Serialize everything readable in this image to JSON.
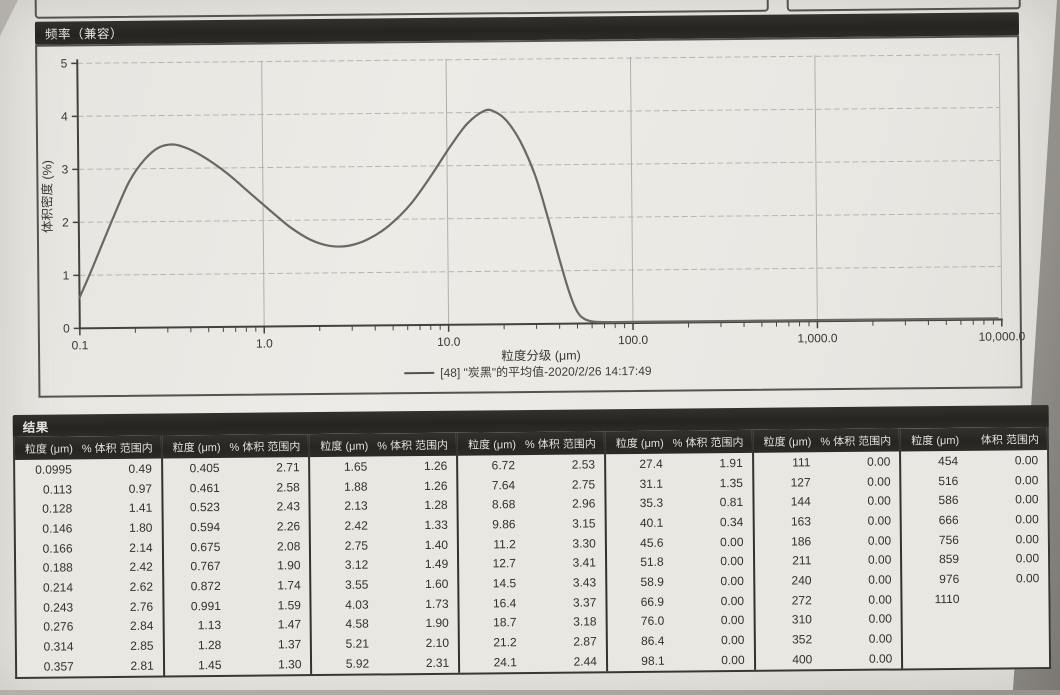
{
  "page": {
    "paper_color": "#e9e7e2",
    "background_color": "#a6a29c",
    "bar_color": "#2b2927",
    "ink_color": "#34322e"
  },
  "chart_panel": {
    "title": "频率（兼容）"
  },
  "chart_data": {
    "type": "line",
    "title": "频率（兼容）",
    "xlabel": "粒度分级 (μm)",
    "ylabel": "体积密度 (%)",
    "x_scale": "log",
    "xlim": [
      0.1,
      10000
    ],
    "ylim": [
      0,
      5
    ],
    "x_tick_labels": [
      "0.1",
      "1.0",
      "10.0",
      "100.0",
      "1,000.0",
      "10,000.0"
    ],
    "y_ticks": [
      0,
      1,
      2,
      3,
      4,
      5
    ],
    "grid": "on",
    "legend_position": "bottom-center",
    "series": [
      {
        "name": "[48] \"炭黑\"的平均值-2020/2/26 14:17:49",
        "points": [
          [
            0.1,
            0.58
          ],
          [
            0.115,
            1.05
          ],
          [
            0.135,
            1.62
          ],
          [
            0.16,
            2.22
          ],
          [
            0.19,
            2.78
          ],
          [
            0.23,
            3.18
          ],
          [
            0.275,
            3.4
          ],
          [
            0.33,
            3.45
          ],
          [
            0.4,
            3.36
          ],
          [
            0.5,
            3.17
          ],
          [
            0.65,
            2.88
          ],
          [
            0.85,
            2.52
          ],
          [
            1.1,
            2.18
          ],
          [
            1.4,
            1.87
          ],
          [
            1.8,
            1.63
          ],
          [
            2.3,
            1.51
          ],
          [
            2.9,
            1.51
          ],
          [
            3.7,
            1.63
          ],
          [
            4.8,
            1.88
          ],
          [
            6.3,
            2.28
          ],
          [
            8.2,
            2.82
          ],
          [
            10.5,
            3.38
          ],
          [
            13,
            3.8
          ],
          [
            16,
            4.03
          ],
          [
            18,
            4.02
          ],
          [
            21,
            3.85
          ],
          [
            25,
            3.45
          ],
          [
            30,
            2.8
          ],
          [
            35,
            2.0
          ],
          [
            40,
            1.25
          ],
          [
            45,
            0.62
          ],
          [
            50,
            0.22
          ],
          [
            55,
            0.08
          ],
          [
            62,
            0.03
          ],
          [
            75,
            0.02
          ],
          [
            100,
            0.02
          ],
          [
            1000,
            0.02
          ],
          [
            9500,
            0.02
          ]
        ]
      }
    ]
  },
  "results": {
    "title": "结果",
    "size_header": "粒度 (μm)",
    "pct_header": "% 体积 范围内",
    "pct_header_last": "体积 范围内",
    "groups": [
      {
        "rows": [
          [
            "0.0995",
            "0.49"
          ],
          [
            "0.113",
            "0.97"
          ],
          [
            "0.128",
            "1.41"
          ],
          [
            "0.146",
            "1.80"
          ],
          [
            "0.166",
            "2.14"
          ],
          [
            "0.188",
            "2.42"
          ],
          [
            "0.214",
            "2.62"
          ],
          [
            "0.243",
            "2.76"
          ],
          [
            "0.276",
            "2.84"
          ],
          [
            "0.314",
            "2.85"
          ],
          [
            "0.357",
            "2.81"
          ]
        ]
      },
      {
        "rows": [
          [
            "0.405",
            "2.71"
          ],
          [
            "0.461",
            "2.58"
          ],
          [
            "0.523",
            "2.43"
          ],
          [
            "0.594",
            "2.26"
          ],
          [
            "0.675",
            "2.08"
          ],
          [
            "0.767",
            "1.90"
          ],
          [
            "0.872",
            "1.74"
          ],
          [
            "0.991",
            "1.59"
          ],
          [
            "1.13",
            "1.47"
          ],
          [
            "1.28",
            "1.37"
          ],
          [
            "1.45",
            "1.30"
          ]
        ]
      },
      {
        "rows": [
          [
            "1.65",
            "1.26"
          ],
          [
            "1.88",
            "1.26"
          ],
          [
            "2.13",
            "1.28"
          ],
          [
            "2.42",
            "1.33"
          ],
          [
            "2.75",
            "1.40"
          ],
          [
            "3.12",
            "1.49"
          ],
          [
            "3.55",
            "1.60"
          ],
          [
            "4.03",
            "1.73"
          ],
          [
            "4.58",
            "1.90"
          ],
          [
            "5.21",
            "2.10"
          ],
          [
            "5.92",
            "2.31"
          ]
        ]
      },
      {
        "rows": [
          [
            "6.72",
            "2.53"
          ],
          [
            "7.64",
            "2.75"
          ],
          [
            "8.68",
            "2.96"
          ],
          [
            "9.86",
            "3.15"
          ],
          [
            "11.2",
            "3.30"
          ],
          [
            "12.7",
            "3.41"
          ],
          [
            "14.5",
            "3.43"
          ],
          [
            "16.4",
            "3.37"
          ],
          [
            "18.7",
            "3.18"
          ],
          [
            "21.2",
            "2.87"
          ],
          [
            "24.1",
            "2.44"
          ]
        ]
      },
      {
        "rows": [
          [
            "27.4",
            "1.91"
          ],
          [
            "31.1",
            "1.35"
          ],
          [
            "35.3",
            "0.81"
          ],
          [
            "40.1",
            "0.34"
          ],
          [
            "45.6",
            "0.00"
          ],
          [
            "51.8",
            "0.00"
          ],
          [
            "58.9",
            "0.00"
          ],
          [
            "66.9",
            "0.00"
          ],
          [
            "76.0",
            "0.00"
          ],
          [
            "86.4",
            "0.00"
          ],
          [
            "98.1",
            "0.00"
          ]
        ]
      },
      {
        "rows": [
          [
            "111",
            "0.00"
          ],
          [
            "127",
            "0.00"
          ],
          [
            "144",
            "0.00"
          ],
          [
            "163",
            "0.00"
          ],
          [
            "186",
            "0.00"
          ],
          [
            "211",
            "0.00"
          ],
          [
            "240",
            "0.00"
          ],
          [
            "272",
            "0.00"
          ],
          [
            "310",
            "0.00"
          ],
          [
            "352",
            "0.00"
          ],
          [
            "400",
            "0.00"
          ]
        ]
      },
      {
        "rows": [
          [
            "454",
            "0.00"
          ],
          [
            "516",
            "0.00"
          ],
          [
            "586",
            "0.00"
          ],
          [
            "666",
            "0.00"
          ],
          [
            "756",
            "0.00"
          ],
          [
            "859",
            "0.00"
          ],
          [
            "976",
            "0.00"
          ],
          [
            "1110",
            ""
          ]
        ]
      }
    ]
  }
}
